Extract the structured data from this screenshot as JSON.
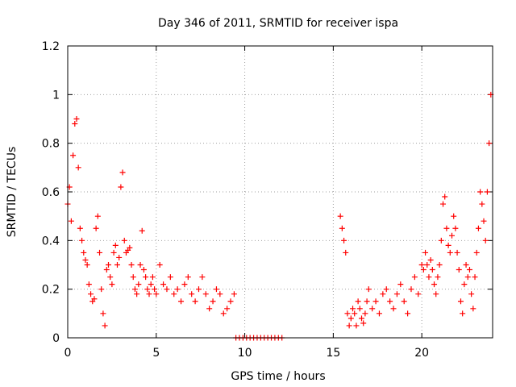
{
  "chart_data": {
    "type": "scatter",
    "title": "Day 346 of 2011, SRMTID for receiver ispa",
    "xlabel": "GPS time / hours",
    "ylabel": "SRMTID / TECUs",
    "xlim": [
      0,
      24
    ],
    "ylim": [
      0,
      1.2
    ],
    "x_ticks": [
      0,
      5,
      10,
      15,
      20
    ],
    "x_tick_labels": [
      "0",
      "5",
      "10",
      "15",
      "20"
    ],
    "y_ticks": [
      0,
      0.2,
      0.4,
      0.6,
      0.8,
      1.0,
      1.2
    ],
    "y_tick_labels": [
      "0",
      "0.2",
      "0.4",
      "0.6",
      "0.8",
      "1",
      "1.2"
    ],
    "grid": true,
    "marker": "+",
    "series": [
      {
        "name": "SRMTID",
        "color": "#ff0000",
        "x": [
          0.0,
          0.1,
          0.2,
          0.3,
          0.4,
          0.5,
          0.6,
          0.7,
          0.8,
          0.9,
          1.0,
          1.1,
          1.2,
          1.3,
          1.4,
          1.5,
          1.6,
          1.7,
          1.8,
          1.9,
          2.0,
          2.1,
          2.2,
          2.3,
          2.4,
          2.5,
          2.6,
          2.7,
          2.8,
          2.9,
          3.0,
          3.1,
          3.2,
          3.3,
          3.4,
          3.5,
          3.6,
          3.7,
          3.8,
          3.9,
          4.0,
          4.1,
          4.2,
          4.3,
          4.4,
          4.5,
          4.6,
          4.7,
          4.8,
          4.9,
          5.0,
          5.2,
          5.4,
          5.6,
          5.8,
          6.0,
          6.2,
          6.4,
          6.6,
          6.8,
          7.0,
          7.2,
          7.4,
          7.6,
          7.8,
          8.0,
          8.2,
          8.4,
          8.6,
          8.8,
          9.0,
          9.2,
          9.4,
          9.5,
          9.7,
          9.9,
          10.1,
          10.3,
          10.5,
          10.7,
          10.9,
          11.1,
          11.3,
          11.5,
          11.7,
          11.9,
          12.1,
          15.4,
          15.5,
          15.6,
          15.7,
          15.8,
          15.9,
          16.0,
          16.1,
          16.2,
          16.3,
          16.4,
          16.5,
          16.6,
          16.7,
          16.8,
          16.9,
          17.0,
          17.2,
          17.4,
          17.6,
          17.8,
          18.0,
          18.2,
          18.4,
          18.6,
          18.8,
          19.0,
          19.2,
          19.4,
          19.6,
          19.8,
          20.0,
          20.1,
          20.2,
          20.3,
          20.4,
          20.5,
          20.6,
          20.7,
          20.8,
          20.9,
          21.0,
          21.1,
          21.2,
          21.3,
          21.4,
          21.5,
          21.6,
          21.7,
          21.8,
          21.9,
          22.0,
          22.1,
          22.2,
          22.3,
          22.4,
          22.5,
          22.6,
          22.7,
          22.8,
          22.9,
          23.0,
          23.1,
          23.2,
          23.3,
          23.4,
          23.5,
          23.6,
          23.7,
          23.8,
          23.9
        ],
        "y": [
          0.55,
          0.62,
          0.48,
          0.75,
          0.88,
          0.9,
          0.7,
          0.45,
          0.4,
          0.35,
          0.32,
          0.3,
          0.22,
          0.18,
          0.15,
          0.16,
          0.45,
          0.5,
          0.35,
          0.2,
          0.1,
          0.05,
          0.28,
          0.3,
          0.25,
          0.22,
          0.35,
          0.38,
          0.3,
          0.33,
          0.62,
          0.68,
          0.4,
          0.35,
          0.36,
          0.37,
          0.3,
          0.25,
          0.2,
          0.18,
          0.22,
          0.3,
          0.44,
          0.28,
          0.25,
          0.2,
          0.18,
          0.22,
          0.25,
          0.2,
          0.18,
          0.3,
          0.22,
          0.2,
          0.25,
          0.18,
          0.2,
          0.15,
          0.22,
          0.25,
          0.18,
          0.15,
          0.2,
          0.25,
          0.18,
          0.12,
          0.15,
          0.2,
          0.18,
          0.1,
          0.12,
          0.15,
          0.18,
          0.0,
          0.0,
          0.0,
          0.0,
          0.0,
          0.0,
          0.0,
          0.0,
          0.0,
          0.0,
          0.0,
          0.0,
          0.0,
          0.0,
          0.5,
          0.45,
          0.4,
          0.35,
          0.1,
          0.05,
          0.08,
          0.12,
          0.1,
          0.05,
          0.15,
          0.12,
          0.08,
          0.06,
          0.1,
          0.15,
          0.2,
          0.12,
          0.15,
          0.1,
          0.18,
          0.2,
          0.15,
          0.12,
          0.18,
          0.22,
          0.15,
          0.1,
          0.2,
          0.25,
          0.18,
          0.3,
          0.28,
          0.35,
          0.3,
          0.25,
          0.32,
          0.28,
          0.22,
          0.18,
          0.25,
          0.3,
          0.4,
          0.55,
          0.58,
          0.45,
          0.38,
          0.35,
          0.42,
          0.5,
          0.45,
          0.35,
          0.28,
          0.15,
          0.1,
          0.22,
          0.3,
          0.25,
          0.28,
          0.18,
          0.12,
          0.25,
          0.35,
          0.45,
          0.6,
          0.55,
          0.48,
          0.4,
          0.6,
          0.8,
          1.0
        ]
      }
    ]
  }
}
